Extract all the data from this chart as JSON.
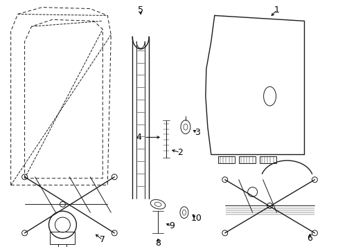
{
  "bg_color": "#ffffff",
  "line_color": "#1a1a1a",
  "label_fontsize": 9,
  "lw_thin": 0.7,
  "lw_med": 1.0,
  "lw_thick": 1.3
}
